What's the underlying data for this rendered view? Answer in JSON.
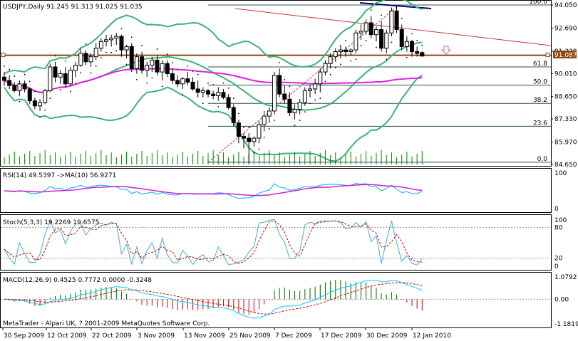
{
  "colors": {
    "bull": "#008000",
    "bear": "#000000",
    "bollinger": "#3cb371",
    "ma_magenta": "#e020e0",
    "rsi_line": "#00aaff",
    "rsi_ma": "#cc22cc",
    "stoch_main": "#4da6d0",
    "stoch_signal": "#cc0000",
    "macd_hist_pos": "#006400",
    "macd_hist_neg": "#cc0000",
    "macd_main": "#00ccff",
    "macd_signal": "#cc0000",
    "fib": "#2f4f4f",
    "hline_price": "#8b4513",
    "trend_red": "#cc3333",
    "trend_blue": "#000080",
    "arrow": "#cc66cc"
  },
  "main": {
    "title": "USDJPY,Daily  91.245 91.313 91.025 91.035",
    "price_label": "91.087",
    "price_ticks": [
      "94.050",
      "92.690",
      "91.330",
      "90.010",
      "88.650",
      "87.330",
      "85.970",
      "84.650"
    ],
    "fib_labels": [
      "100.0",
      "61.8",
      "50.0",
      "38.2",
      "23.6",
      "0.0"
    ]
  },
  "rsi": {
    "title": "RSI(14) 49.5397  ->MA(10) 56.9271",
    "ticks": [
      "100",
      "0"
    ]
  },
  "stoch": {
    "title": "Stoch(5,3,3) 19.2269 19.6575",
    "ticks": [
      "100",
      "80",
      "20",
      "0"
    ]
  },
  "macd": {
    "title": "MACD(12,26,9) 0.4525 0.7772 0.0000 -0.3248",
    "ticks": [
      "1.0792",
      "0.00",
      "-1.1819"
    ]
  },
  "copyright": "MetaTrader - Alpari UK, ? 2001-2009 MetaQuotes Software Corp.",
  "x_labels": [
    "30 Sep 2009",
    "12 Oct 2009",
    "22 Oct 2009",
    "3 Nov 2009",
    "13 Nov 2009",
    "25 Nov 2009",
    "7 Dec 2009",
    "17 Dec 2009",
    "30 Dec 2009",
    "12 Jan 2010"
  ],
  "chart_data": {
    "type": "candlestick",
    "symbol": "USDJPY",
    "timeframe": "Daily",
    "ohlc_last": {
      "open": 91.245,
      "high": 91.313,
      "low": 91.025,
      "close": 91.035
    },
    "ylim": [
      84.65,
      94.05
    ],
    "candles": [
      [
        89.8,
        90.1,
        89.3,
        89.6
      ],
      [
        89.6,
        89.9,
        89.1,
        89.3
      ],
      [
        89.3,
        89.5,
        88.9,
        89.0
      ],
      [
        89.0,
        89.6,
        88.7,
        89.4
      ],
      [
        89.4,
        89.6,
        88.9,
        89.1
      ],
      [
        89.1,
        89.2,
        88.2,
        88.4
      ],
      [
        88.4,
        88.6,
        87.9,
        88.1
      ],
      [
        88.1,
        88.5,
        87.8,
        88.3
      ],
      [
        88.3,
        89.1,
        88.2,
        89.0
      ],
      [
        89.0,
        90.6,
        88.9,
        90.4
      ],
      [
        90.4,
        90.7,
        89.5,
        89.8
      ],
      [
        89.8,
        90.2,
        89.4,
        90.0
      ],
      [
        90.0,
        90.4,
        89.2,
        89.4
      ],
      [
        89.4,
        90.4,
        89.3,
        90.2
      ],
      [
        90.2,
        90.7,
        89.8,
        90.5
      ],
      [
        90.5,
        91.5,
        90.4,
        91.2
      ],
      [
        91.2,
        91.4,
        90.5,
        90.7
      ],
      [
        90.7,
        91.2,
        90.4,
        91.0
      ],
      [
        91.0,
        91.8,
        90.8,
        91.5
      ],
      [
        91.5,
        92.1,
        91.3,
        91.9
      ],
      [
        91.9,
        92.3,
        91.6,
        92.0
      ],
      [
        92.0,
        92.3,
        91.6,
        92.1
      ],
      [
        92.1,
        92.4,
        91.7,
        92.2
      ],
      [
        92.2,
        92.3,
        91.0,
        91.4
      ],
      [
        91.4,
        91.7,
        90.9,
        91.6
      ],
      [
        91.6,
        91.8,
        90.1,
        90.3
      ],
      [
        90.3,
        91.2,
        90.0,
        91.0
      ],
      [
        91.0,
        91.3,
        90.0,
        90.2
      ],
      [
        90.2,
        90.7,
        89.8,
        90.5
      ],
      [
        90.5,
        91.0,
        90.1,
        90.8
      ],
      [
        90.8,
        91.1,
        89.9,
        90.1
      ],
      [
        90.1,
        90.8,
        89.6,
        90.6
      ],
      [
        90.6,
        90.8,
        89.8,
        90.0
      ],
      [
        90.0,
        90.3,
        89.4,
        89.6
      ],
      [
        89.6,
        89.9,
        89.2,
        89.4
      ],
      [
        89.4,
        89.8,
        89.1,
        89.7
      ],
      [
        89.7,
        90.1,
        89.3,
        89.5
      ],
      [
        89.5,
        89.8,
        89.0,
        89.1
      ],
      [
        89.1,
        89.6,
        88.6,
        88.9
      ],
      [
        88.9,
        89.2,
        88.6,
        89.0
      ],
      [
        89.0,
        89.1,
        88.6,
        88.8
      ],
      [
        88.8,
        89.0,
        88.5,
        88.7
      ],
      [
        88.7,
        89.2,
        88.4,
        88.9
      ],
      [
        88.9,
        89.1,
        88.5,
        88.6
      ],
      [
        88.6,
        88.8,
        87.9,
        88.0
      ],
      [
        88.0,
        88.2,
        86.9,
        87.1
      ],
      [
        87.1,
        87.3,
        85.9,
        86.3
      ],
      [
        86.3,
        86.5,
        85.6,
        86.2
      ],
      [
        86.2,
        86.5,
        84.7,
        86.0
      ],
      [
        86.0,
        86.3,
        85.7,
        86.2
      ],
      [
        86.2,
        87.2,
        85.9,
        87.0
      ],
      [
        87.0,
        87.8,
        86.6,
        87.5
      ],
      [
        87.5,
        88.0,
        87.1,
        87.8
      ],
      [
        87.8,
        90.1,
        87.6,
        89.9
      ],
      [
        89.9,
        90.3,
        88.6,
        88.8
      ],
      [
        88.8,
        89.3,
        88.2,
        88.5
      ],
      [
        88.5,
        88.9,
        87.5,
        87.7
      ],
      [
        87.7,
        88.2,
        87.3,
        87.9
      ],
      [
        87.9,
        88.5,
        87.6,
        88.3
      ],
      [
        88.3,
        89.2,
        88.1,
        89.0
      ],
      [
        89.0,
        89.3,
        88.6,
        89.1
      ],
      [
        89.1,
        89.7,
        88.8,
        89.4
      ],
      [
        89.4,
        90.3,
        88.9,
        90.1
      ],
      [
        90.1,
        90.8,
        89.9,
        90.6
      ],
      [
        90.6,
        91.2,
        90.3,
        91.0
      ],
      [
        91.0,
        91.5,
        90.7,
        91.3
      ],
      [
        91.3,
        91.7,
        90.9,
        91.4
      ],
      [
        91.4,
        91.6,
        91.0,
        91.3
      ],
      [
        91.3,
        91.5,
        91.1,
        91.4
      ],
      [
        91.4,
        92.6,
        91.2,
        92.4
      ],
      [
        92.4,
        92.9,
        92.0,
        92.5
      ],
      [
        92.5,
        93.2,
        92.3,
        93.0
      ],
      [
        93.0,
        93.4,
        92.1,
        92.3
      ],
      [
        92.3,
        92.8,
        91.9,
        92.6
      ],
      [
        92.6,
        93.1,
        91.3,
        91.5
      ],
      [
        91.5,
        92.6,
        91.2,
        92.4
      ],
      [
        92.4,
        93.9,
        92.2,
        93.7
      ],
      [
        93.7,
        94.0,
        92.4,
        92.6
      ],
      [
        92.6,
        92.9,
        91.4,
        91.6
      ],
      [
        91.6,
        92.2,
        91.3,
        91.9
      ],
      [
        91.9,
        92.0,
        91.0,
        91.3
      ],
      [
        91.3,
        91.6,
        91.0,
        91.2
      ],
      [
        91.245,
        91.313,
        91.025,
        91.035
      ]
    ],
    "fib_levels": [
      {
        "label": "100.0",
        "price": 94.05
      },
      {
        "label": "61.8",
        "price": 90.4
      },
      {
        "label": "50.0",
        "price": 89.33
      },
      {
        "label": "38.2",
        "price": 88.25
      },
      {
        "label": "23.6",
        "price": 86.9
      },
      {
        "label": "0.0",
        "price": 84.78
      }
    ],
    "rsi": {
      "value": 49.5397,
      "ma": 56.9271,
      "ylim": [
        0,
        100
      ]
    },
    "stoch": {
      "main": 19.2269,
      "signal": 19.6575,
      "levels": [
        80,
        20
      ],
      "ylim": [
        0,
        100
      ]
    },
    "macd": {
      "main": 0.4525,
      "signal": 0.7772,
      "ylim": [
        -1.1819,
        1.0792
      ]
    }
  }
}
